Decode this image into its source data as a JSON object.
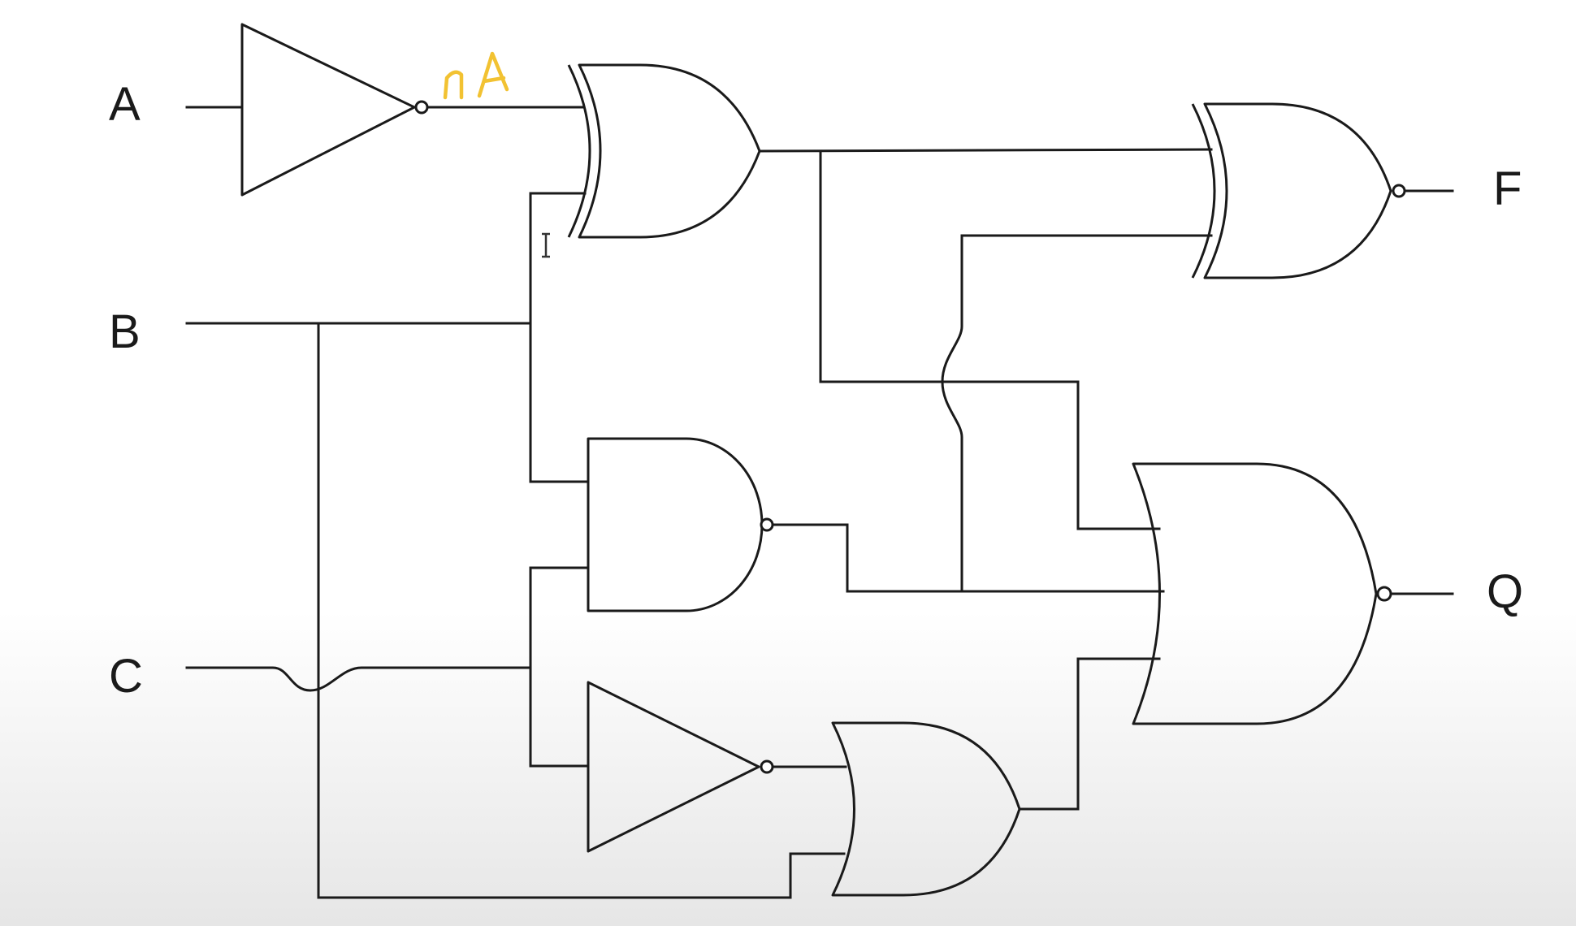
{
  "inputs": [
    "A",
    "B",
    "C"
  ],
  "outputs": [
    "F",
    "Q"
  ],
  "annotation": {
    "text": "nA",
    "color": "#f2c232"
  },
  "colors": {
    "line": "#1a1a1a",
    "background": "#ffffff"
  },
  "cursor_icon": "text-cursor-icon"
}
